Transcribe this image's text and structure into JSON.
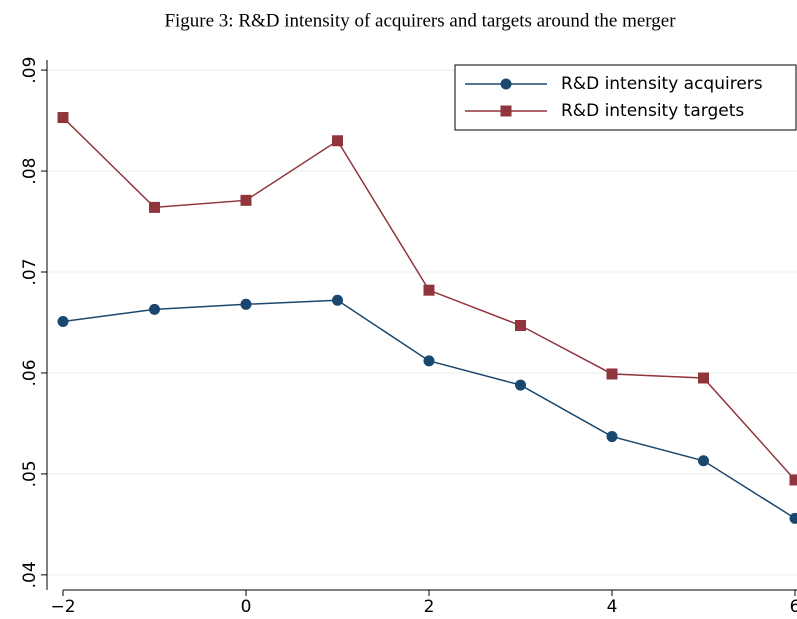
{
  "chart_data": {
    "type": "line",
    "title": "Figure 3: R&D intensity of acquirers and targets around the merger",
    "x": [
      -2,
      -1,
      0,
      1,
      2,
      3,
      4,
      5,
      6
    ],
    "series": [
      {
        "name": "R&D intensity acquirers",
        "color": "#1a476f",
        "marker": "circle",
        "values": [
          0.0651,
          0.0663,
          0.0668,
          0.0672,
          0.0612,
          0.0588,
          0.0537,
          0.0513,
          0.0456
        ]
      },
      {
        "name": "R&D intensity targets",
        "color": "#90353b",
        "marker": "square",
        "values": [
          0.0853,
          0.0764,
          0.0771,
          0.083,
          0.0682,
          0.0647,
          0.0599,
          0.0595,
          0.0494
        ]
      }
    ],
    "xlim": [
      -2,
      6
    ],
    "xticks": [
      {
        "value": -2,
        "label": "−2"
      },
      0,
      2,
      4,
      6
    ],
    "ylim": [
      0.0385,
      0.091
    ],
    "yticks": [
      {
        "value": 0.04,
        "label": ".04"
      },
      {
        "value": 0.05,
        "label": ".05"
      },
      {
        "value": 0.06,
        "label": ".06"
      },
      {
        "value": 0.07,
        "label": ".07"
      },
      {
        "value": 0.08,
        "label": ".08"
      },
      {
        "value": 0.09,
        "label": ".09"
      }
    ],
    "grid": true,
    "legend": "top-right"
  }
}
